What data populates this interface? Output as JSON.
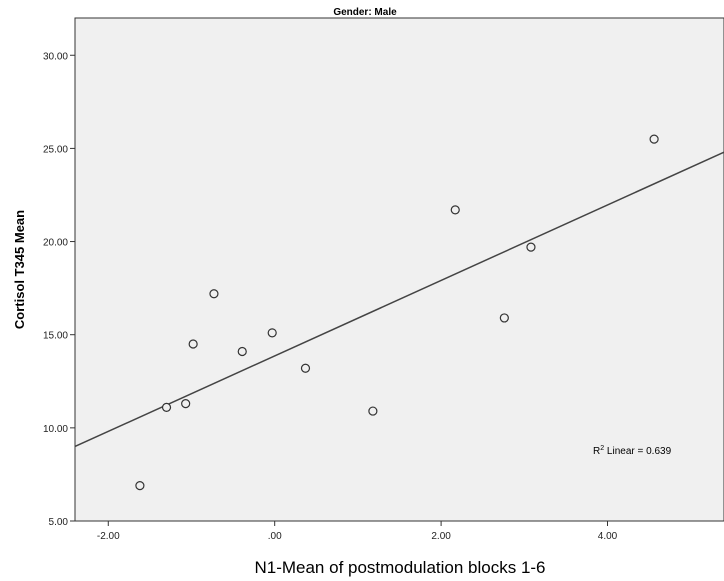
{
  "chart_data": {
    "type": "scatter",
    "title": "Gender: Male",
    "xlabel": "N1-Mean of postmodulation blocks 1-6",
    "ylabel": "Cortisol T345 Mean",
    "xlim": [
      -2.4,
      5.4
    ],
    "ylim": [
      5.0,
      32.0
    ],
    "x_ticks": [
      -2.0,
      0.0,
      2.0,
      4.0
    ],
    "x_tick_labels": [
      "-2.00",
      ".00",
      "2.00",
      "4.00"
    ],
    "y_ticks": [
      5.0,
      10.0,
      15.0,
      20.0,
      25.0,
      30.0
    ],
    "y_tick_labels": [
      "5.00",
      "10.00",
      "15.00",
      "20.00",
      "25.00",
      "30.00"
    ],
    "points": [
      {
        "x": -1.62,
        "y": 6.9
      },
      {
        "x": -1.3,
        "y": 11.1
      },
      {
        "x": -1.07,
        "y": 11.3
      },
      {
        "x": -0.98,
        "y": 14.5
      },
      {
        "x": -0.73,
        "y": 17.2
      },
      {
        "x": -0.39,
        "y": 14.1
      },
      {
        "x": -0.03,
        "y": 15.1
      },
      {
        "x": 0.37,
        "y": 13.2
      },
      {
        "x": 1.18,
        "y": 10.9
      },
      {
        "x": 2.17,
        "y": 21.7
      },
      {
        "x": 2.76,
        "y": 15.9
      },
      {
        "x": 3.08,
        "y": 19.7
      },
      {
        "x": 4.56,
        "y": 25.5
      }
    ],
    "fit_line": {
      "type": "linear",
      "x": [
        -2.4,
        5.4
      ],
      "y": [
        9.0,
        24.8
      ]
    },
    "r2_label_prefix": "R",
    "r2_label_sup": "2",
    "r2_label_text": " Linear = 0.639",
    "grid": false
  }
}
